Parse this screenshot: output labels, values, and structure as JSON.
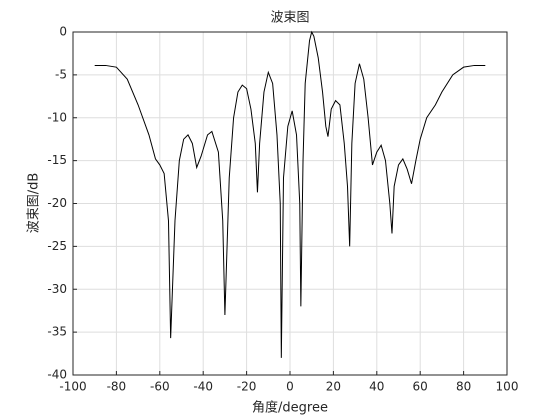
{
  "chart_data": {
    "type": "line",
    "title": "波束图",
    "xlabel": "角度/degree",
    "ylabel": "波束图/dB",
    "x": [
      -90,
      -85,
      -80,
      -75,
      -70,
      -65,
      -62,
      -60,
      -58,
      -56,
      -55,
      -53,
      -51,
      -49,
      -47,
      -45,
      -43,
      -41,
      -38,
      -36,
      -33,
      -31,
      -30,
      -28,
      -26,
      -24,
      -22,
      -20,
      -18,
      -16,
      -15,
      -14,
      -12,
      -10,
      -8,
      -6,
      -4.5,
      -4,
      -3,
      -1,
      1,
      3,
      4.5,
      5,
      6,
      7,
      9,
      10,
      11,
      13,
      15,
      16.5,
      17.5,
      19,
      21,
      23,
      25,
      26.5,
      27.5,
      28.5,
      30,
      32,
      34,
      36,
      38,
      40,
      42,
      44,
      46,
      47,
      48,
      50,
      52,
      54,
      56,
      58,
      60,
      63,
      67,
      70,
      75,
      80,
      85,
      90
    ],
    "values": [
      -3.9,
      -3.9,
      -4.1,
      -5.5,
      -8.5,
      -12,
      -14.8,
      -15.5,
      -16.5,
      -22,
      -35.7,
      -22,
      -15,
      -12.5,
      -12,
      -13,
      -15.8,
      -14.5,
      -12,
      -11.6,
      -14,
      -22,
      -33,
      -17,
      -10,
      -7,
      -6.2,
      -6.6,
      -9,
      -13,
      -18.7,
      -13,
      -7,
      -4.7,
      -6,
      -12,
      -20,
      -38,
      -17,
      -11,
      -9.2,
      -12,
      -20,
      -32,
      -15,
      -6,
      -1,
      0,
      -0.5,
      -3,
      -7,
      -11,
      -12.2,
      -9,
      -8,
      -8.5,
      -13,
      -18,
      -25,
      -13,
      -6,
      -3.7,
      -5.5,
      -10,
      -15.5,
      -14,
      -13.2,
      -15,
      -20,
      -23.5,
      -18,
      -15.5,
      -14.8,
      -16,
      -17.7,
      -15,
      -12.5,
      -10,
      -8.5,
      -7,
      -5,
      -4.1,
      -3.9,
      -3.9
    ],
    "color": "#000000",
    "xlim": [
      -100,
      100
    ],
    "xticks": [
      -100,
      -80,
      -60,
      -40,
      -20,
      0,
      20,
      40,
      60,
      80,
      100
    ],
    "ylim": [
      -40,
      0
    ],
    "yticks": [
      -40,
      -35,
      -30,
      -25,
      -20,
      -15,
      -10,
      -5,
      0
    ],
    "grid": true
  }
}
